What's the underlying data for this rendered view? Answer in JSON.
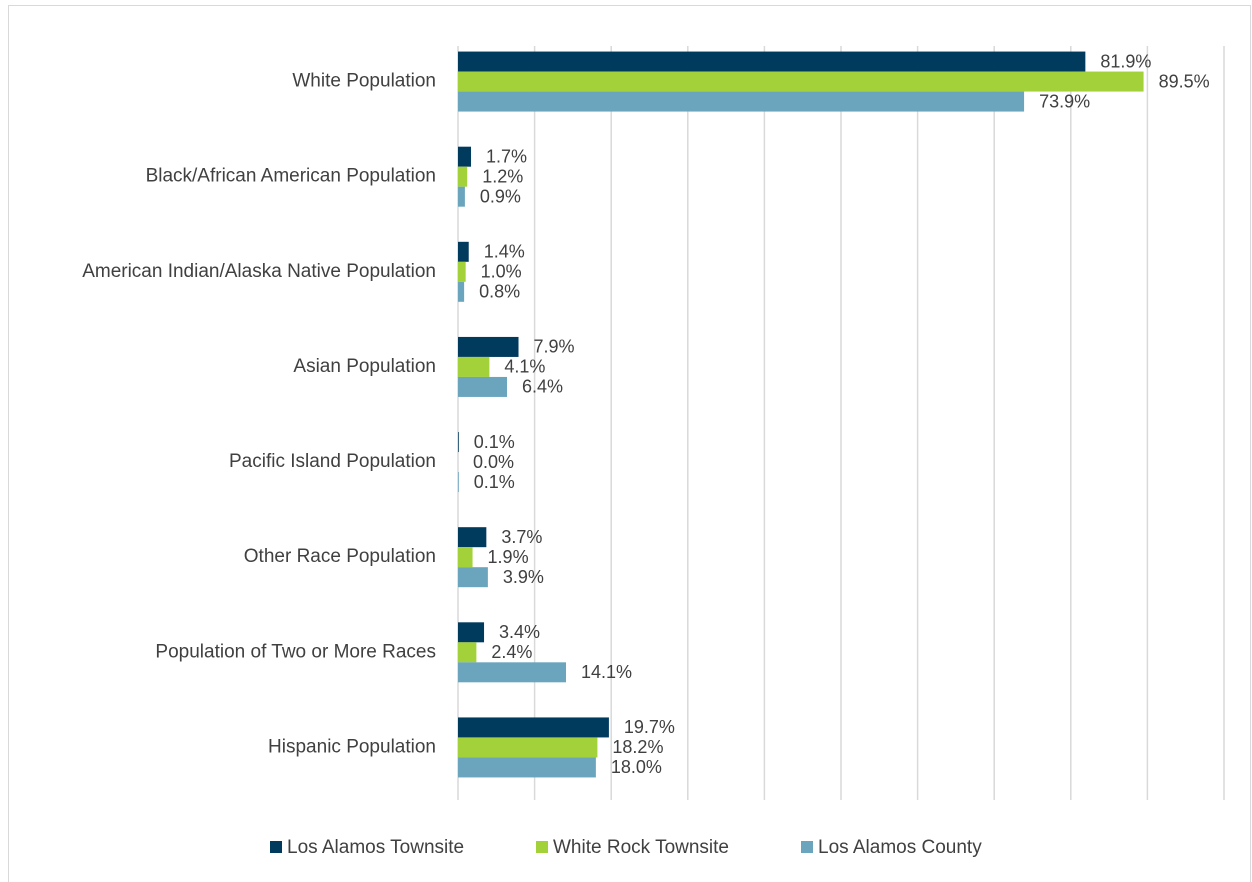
{
  "chart_data": {
    "type": "hbar",
    "categories": [
      "White Population",
      "Black/African American Population",
      "American Indian/Alaska Native Population",
      "Asian Population",
      "Pacific Island Population",
      "Other Race Population",
      "Population of Two or More Races",
      "Hispanic Population"
    ],
    "series": [
      {
        "name": "Los Alamos Townsite",
        "color": "#003a5d",
        "values": [
          81.9,
          1.7,
          1.4,
          7.9,
          0.1,
          3.7,
          3.4,
          19.7
        ],
        "value_labels": [
          "81.9%",
          "1.7%",
          "1.4%",
          "7.9%",
          "0.1%",
          "3.7%",
          "3.4%",
          "19.7%"
        ]
      },
      {
        "name": "White Rock Townsite",
        "color": "#a3d13a",
        "values": [
          89.5,
          1.2,
          1.0,
          4.1,
          0.0,
          1.9,
          2.4,
          18.2
        ],
        "value_labels": [
          "89.5%",
          "1.2%",
          "1.0%",
          "4.1%",
          "0.0%",
          "1.9%",
          "2.4%",
          "18.2%"
        ]
      },
      {
        "name": "Los Alamos County",
        "color": "#6aa5bd",
        "values": [
          73.9,
          0.9,
          0.8,
          6.4,
          0.1,
          3.9,
          14.1,
          18.0
        ],
        "value_labels": [
          "73.9%",
          "0.9%",
          "0.8%",
          "6.4%",
          "0.1%",
          "3.9%",
          "14.1%",
          "18.0%"
        ]
      }
    ],
    "xlim": [
      0,
      100
    ],
    "xticks": [
      0,
      10,
      20,
      30,
      40,
      50,
      60,
      70,
      80,
      90,
      100
    ],
    "grid": true,
    "legend": "bottom"
  }
}
